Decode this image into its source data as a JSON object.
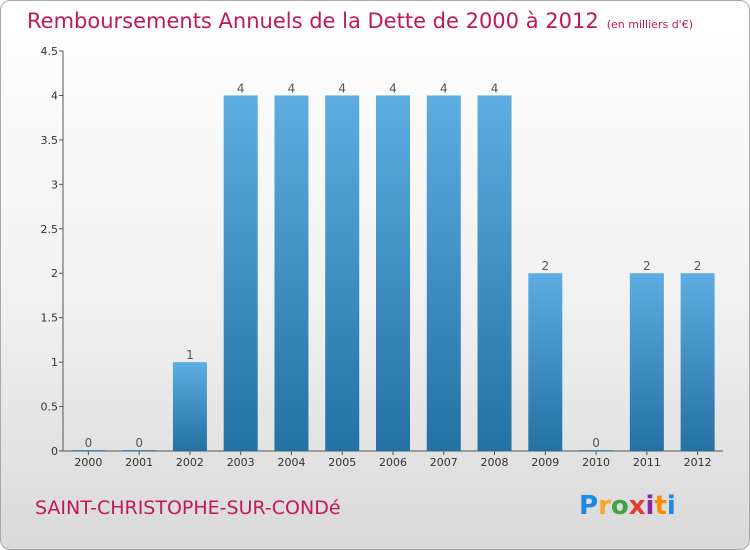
{
  "header": {
    "title": "Remboursements Annuels de la Dette de 2000 à 2012",
    "subtitle": "(en milliers d'€)"
  },
  "footer": {
    "commune": "SAINT-CHRISTOPHE-SUR-CONDé",
    "logo": "Proxiti"
  },
  "colors": {
    "accent": "#c2185b",
    "bar_light": "#5dade2",
    "bar_dark": "#2471a3"
  },
  "chart_data": {
    "type": "bar",
    "categories": [
      "2000",
      "2001",
      "2002",
      "2003",
      "2004",
      "2005",
      "2006",
      "2007",
      "2008",
      "2009",
      "2010",
      "2011",
      "2012"
    ],
    "values": [
      0,
      0,
      1,
      4,
      4,
      4,
      4,
      4,
      4,
      2,
      0,
      2,
      2
    ],
    "data_labels": [
      "0",
      "0",
      "1",
      "4",
      "4",
      "4",
      "4",
      "4",
      "4",
      "2",
      "0",
      "2",
      "2"
    ],
    "ylim": [
      0,
      4.5
    ],
    "yticks": [
      "0",
      "0.5",
      "1",
      "1.5",
      "2",
      "2.5",
      "3",
      "3.5",
      "4",
      "4.5"
    ],
    "ytick_values": [
      0,
      0.5,
      1,
      1.5,
      2,
      2.5,
      3,
      3.5,
      4,
      4.5
    ],
    "title": "Remboursements Annuels de la Dette de 2000 à 2012",
    "xlabel": "",
    "ylabel": "",
    "grid": false,
    "legend": "none"
  }
}
